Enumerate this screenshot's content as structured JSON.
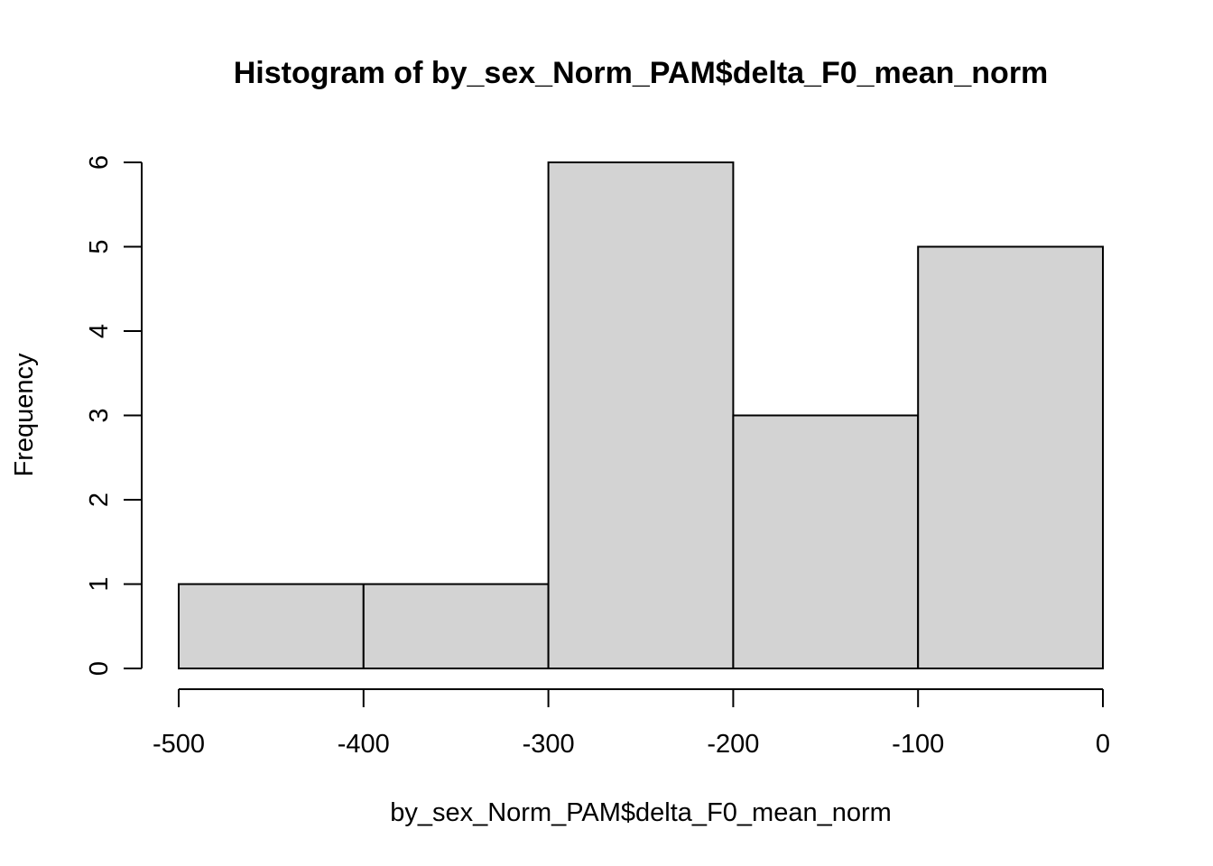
{
  "chart_data": {
    "type": "bar",
    "subtype": "histogram",
    "title": "Histogram of by_sex_Norm_PAM$delta_F0_mean_norm",
    "xlabel": "by_sex_Norm_PAM$delta_F0_mean_norm",
    "ylabel": "Frequency",
    "bins": [
      {
        "start": -500,
        "end": -400,
        "count": 1
      },
      {
        "start": -400,
        "end": -300,
        "count": 1
      },
      {
        "start": -300,
        "end": -200,
        "count": 6
      },
      {
        "start": -200,
        "end": -100,
        "count": 3
      },
      {
        "start": -100,
        "end": 0,
        "count": 5
      }
    ],
    "xlim": [
      -500,
      0
    ],
    "ylim": [
      0,
      6
    ],
    "x_ticks": [
      -500,
      -400,
      -300,
      -200,
      -100,
      0
    ],
    "x_tick_labels": [
      "-500",
      "-400",
      "-300",
      "-200",
      "-100",
      "0"
    ],
    "y_ticks": [
      0,
      1,
      2,
      3,
      4,
      5,
      6
    ],
    "y_tick_labels": [
      "0",
      "1",
      "2",
      "3",
      "4",
      "5",
      "6"
    ],
    "bar_color": "#d3d3d3",
    "edge_color": "#000000",
    "grid": false,
    "legend": "none"
  }
}
